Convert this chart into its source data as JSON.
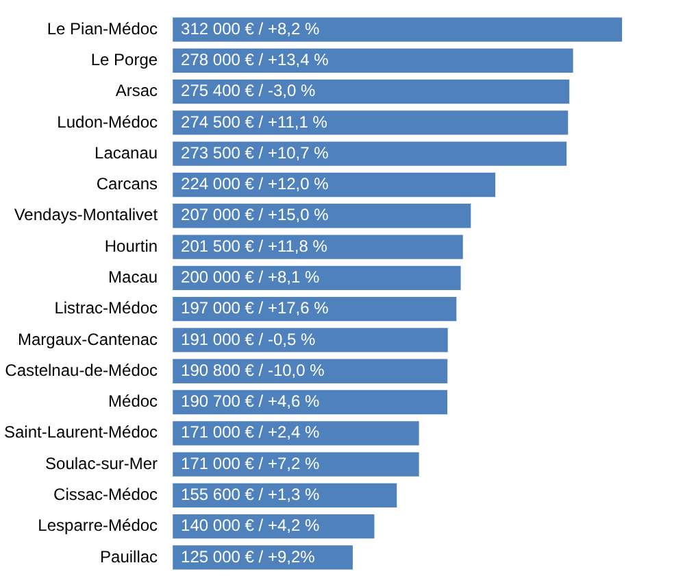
{
  "chart_data": {
    "type": "bar",
    "orientation": "horizontal",
    "color": "#4f81bd",
    "categories": [
      "Le Pian-Médoc",
      "Le Porge",
      "Arsac",
      "Ludon-Médoc",
      "Lacanau",
      "Carcans",
      "Vendays-Montalivet",
      "Hourtin",
      "Macau",
      "Listrac-Médoc",
      "Margaux-Cantenac",
      "Castelnau-de-Médoc",
      "Médoc",
      "Saint-Laurent-Médoc",
      "Soulac-sur-Mer",
      "Cissac-Médoc",
      "Lesparre-Médoc",
      "Pauillac"
    ],
    "values": [
      312000,
      278000,
      275400,
      274500,
      273500,
      224000,
      207000,
      201500,
      200000,
      197000,
      191000,
      190800,
      190700,
      171000,
      171000,
      155600,
      140000,
      125000
    ],
    "value_labels": [
      "312 000 € / +8,2 %",
      "278 000 € / +13,4 %",
      "275 400 € / -3,0 %",
      "274 500 € / +11,1 %",
      "273 500 € / +10,7 %",
      "224 000 € / +12,0 %",
      "207 000 € / +15,0 %",
      "201 500 € / +11,8 %",
      "200 000 € / +8,1 %",
      "197 000 € / +17,6 %",
      "191 000 € / -0,5 %",
      "190 800 € / -10,0 %",
      "190 700 € / +4,6 %",
      "171 000 € / +2,4 %",
      "171 000 € / +7,2 %",
      "155 600 € / +1,3 %",
      "140 000 € / +4,2 %",
      "125 000 € / +9,2%"
    ]
  }
}
